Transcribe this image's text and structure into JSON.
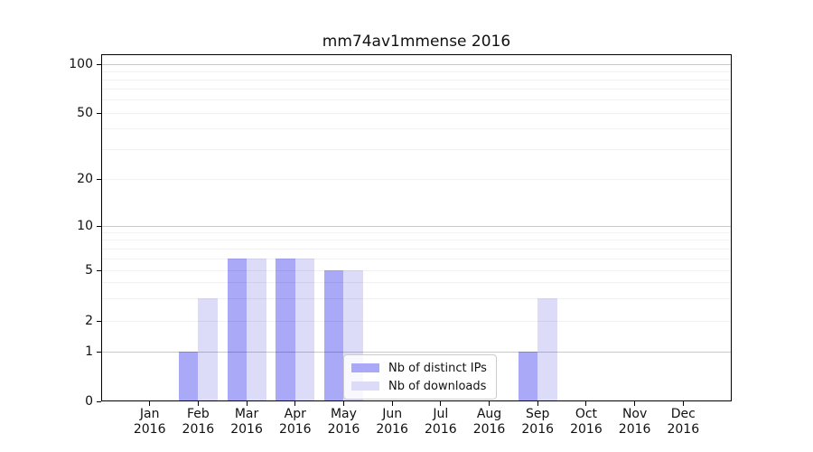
{
  "chart_data": {
    "type": "bar",
    "title": "mm74av1mmense 2016",
    "categories": [
      "Jan",
      "Feb",
      "Mar",
      "Apr",
      "May",
      "Jun",
      "Jul",
      "Aug",
      "Sep",
      "Oct",
      "Nov",
      "Dec"
    ],
    "category_year": "2016",
    "series": [
      {
        "name": "Nb of distinct IPs",
        "color": "#a9a9f7",
        "values": [
          0,
          1,
          6,
          6,
          5,
          0,
          0,
          0,
          1,
          0,
          0,
          0
        ]
      },
      {
        "name": "Nb of downloads",
        "color": "#dcdcf9",
        "values": [
          0,
          3,
          6,
          6,
          5,
          0,
          0,
          0,
          3,
          0,
          0,
          0
        ]
      }
    ],
    "yticks": [
      0,
      1,
      2,
      5,
      10,
      20,
      50,
      100
    ],
    "ylim": [
      0,
      116
    ],
    "yscale": "log above 1, linear 0-1 (symlog)",
    "grid": {
      "horizontal": true,
      "major_values": [
        1,
        10,
        100
      ],
      "minor_values": [
        2,
        3,
        4,
        5,
        6,
        7,
        8,
        9,
        20,
        30,
        40,
        50,
        60,
        70,
        80,
        90
      ]
    },
    "legend": {
      "position": "inside, lower middle"
    },
    "colors": {
      "major_grid": "rgba(0,0,0,0.21)",
      "minor_grid": "rgba(0,0,0,0.055)",
      "axis": "#000000",
      "background": "#ffffff"
    }
  }
}
